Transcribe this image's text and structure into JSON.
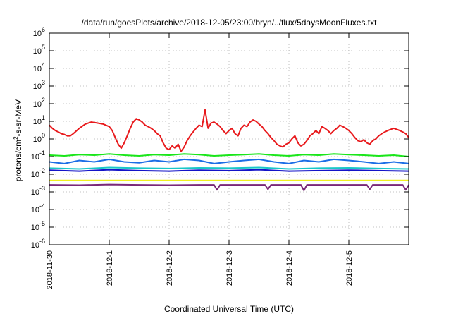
{
  "chart_data": {
    "type": "line",
    "title": "/data/run/goesPlots/archive/2018-12-05/23:00/bryn/../flux/5daysMoonFluxes.txt",
    "xlabel": "Coordinated Universal Time (UTC)",
    "ylabel": "protons/cm2-s-sr-MeV",
    "ylabel_parts": {
      "pre": "protons/cm",
      "sup": "2",
      "post": "-s-sr-MeV"
    },
    "xlim": [
      0,
      6
    ],
    "x_ticks": [
      {
        "value": 0,
        "label": "2018-11-30"
      },
      {
        "value": 1,
        "label": "2018-12-1"
      },
      {
        "value": 2,
        "label": "2018-12-2"
      },
      {
        "value": 3,
        "label": "2018-12-3"
      },
      {
        "value": 4,
        "label": "2018-12-4"
      },
      {
        "value": 5,
        "label": "2018-12-5"
      }
    ],
    "y_scale": "log",
    "ylim": [
      1e-06,
      1000000.0
    ],
    "y_ticks": [
      {
        "value": 1e-06,
        "base": "10",
        "exp": "-6"
      },
      {
        "value": 1e-05,
        "base": "10",
        "exp": "-5"
      },
      {
        "value": 0.0001,
        "base": "10",
        "exp": "-4"
      },
      {
        "value": 0.001,
        "base": "10",
        "exp": "-3"
      },
      {
        "value": 0.01,
        "base": "10",
        "exp": "-2"
      },
      {
        "value": 0.1,
        "base": "10",
        "exp": "-1"
      },
      {
        "value": 1,
        "base": "10",
        "exp": "0"
      },
      {
        "value": 10,
        "base": "10",
        "exp": "1"
      },
      {
        "value": 100,
        "base": "10",
        "exp": "2"
      },
      {
        "value": 1000,
        "base": "10",
        "exp": "3"
      },
      {
        "value": 10000,
        "base": "10",
        "exp": "4"
      },
      {
        "value": 100000,
        "base": "10",
        "exp": "5"
      },
      {
        "value": 1000000,
        "base": "10",
        "exp": "6"
      }
    ],
    "grid": true,
    "series": [
      {
        "color": "#e8191c",
        "x": [
          0,
          0.05,
          0.1,
          0.15,
          0.2,
          0.25,
          0.3,
          0.35,
          0.4,
          0.5,
          0.6,
          0.7,
          0.8,
          0.9,
          1.0,
          1.05,
          1.1,
          1.15,
          1.2,
          1.25,
          1.3,
          1.35,
          1.4,
          1.45,
          1.5,
          1.55,
          1.6,
          1.65,
          1.7,
          1.75,
          1.8,
          1.85,
          1.9,
          1.95,
          2.0,
          2.05,
          2.1,
          2.15,
          2.2,
          2.25,
          2.3,
          2.35,
          2.4,
          2.45,
          2.5,
          2.55,
          2.6,
          2.65,
          2.7,
          2.75,
          2.8,
          2.85,
          2.9,
          2.95,
          3.0,
          3.05,
          3.1,
          3.15,
          3.2,
          3.25,
          3.3,
          3.35,
          3.4,
          3.45,
          3.5,
          3.55,
          3.6,
          3.65,
          3.7,
          3.75,
          3.8,
          3.85,
          3.9,
          3.95,
          4.0,
          4.05,
          4.1,
          4.15,
          4.2,
          4.25,
          4.3,
          4.35,
          4.4,
          4.45,
          4.5,
          4.55,
          4.6,
          4.65,
          4.7,
          4.75,
          4.8,
          4.85,
          4.9,
          4.95,
          5.0,
          5.05,
          5.1,
          5.15,
          5.2,
          5.25,
          5.3,
          5.35,
          5.4,
          5.45,
          5.5,
          5.55,
          5.6,
          5.65,
          5.7,
          5.75,
          5.8,
          5.85,
          5.9,
          5.95,
          6.0
        ],
        "values": [
          6,
          4,
          3,
          2.5,
          2,
          1.8,
          1.5,
          1.5,
          2,
          4,
          7,
          9,
          8,
          7,
          5,
          3,
          1.2,
          0.5,
          0.3,
          0.6,
          1.5,
          4,
          9,
          14,
          12,
          9,
          6,
          5,
          4,
          3,
          2,
          1.5,
          0.6,
          0.3,
          0.25,
          0.4,
          0.3,
          0.5,
          0.2,
          0.35,
          0.8,
          1.5,
          2.5,
          4,
          6,
          5,
          45,
          4,
          8,
          9,
          7,
          5,
          3,
          2,
          3,
          4,
          2,
          1.5,
          4,
          6,
          5,
          9,
          12,
          10,
          7,
          5,
          3,
          2,
          1.2,
          0.8,
          0.5,
          0.4,
          0.35,
          0.5,
          0.6,
          1.0,
          1.5,
          0.6,
          0.4,
          0.5,
          0.8,
          1.5,
          2,
          3,
          2,
          5,
          4,
          3,
          2,
          3,
          4,
          6,
          5,
          4,
          3,
          2,
          1.2,
          0.8,
          0.7,
          0.9,
          0.6,
          0.5,
          0.8,
          1.0,
          1.5,
          2,
          2.5,
          3,
          3.5,
          4,
          3.5,
          3,
          2.5,
          2,
          1.2
        ]
      },
      {
        "color": "#19e619",
        "x": [
          0,
          0.25,
          0.5,
          0.75,
          1,
          1.25,
          1.5,
          1.75,
          2,
          2.25,
          2.5,
          2.75,
          3,
          3.25,
          3.5,
          3.75,
          4,
          4.25,
          4.5,
          4.75,
          5,
          5.25,
          5.5,
          5.75,
          6
        ],
        "values": [
          0.12,
          0.11,
          0.13,
          0.12,
          0.14,
          0.12,
          0.11,
          0.13,
          0.12,
          0.14,
          0.13,
          0.11,
          0.12,
          0.13,
          0.14,
          0.12,
          0.11,
          0.13,
          0.12,
          0.14,
          0.13,
          0.12,
          0.11,
          0.12,
          0.1
        ]
      },
      {
        "color": "#1c6ee6",
        "x": [
          0,
          0.25,
          0.5,
          0.75,
          1,
          1.25,
          1.5,
          1.75,
          2,
          2.25,
          2.5,
          2.75,
          3,
          3.25,
          3.5,
          3.75,
          4,
          4.25,
          4.5,
          4.75,
          5,
          5.25,
          5.5,
          5.75,
          6
        ],
        "values": [
          0.05,
          0.04,
          0.06,
          0.05,
          0.07,
          0.05,
          0.045,
          0.06,
          0.05,
          0.07,
          0.06,
          0.04,
          0.05,
          0.06,
          0.07,
          0.05,
          0.04,
          0.06,
          0.05,
          0.07,
          0.06,
          0.05,
          0.04,
          0.05,
          0.04
        ]
      },
      {
        "color": "#19c8c8",
        "x": [
          0,
          0.5,
          1,
          1.5,
          2,
          2.5,
          3,
          3.5,
          4,
          4.5,
          5,
          5.5,
          6
        ],
        "values": [
          0.022,
          0.02,
          0.024,
          0.022,
          0.021,
          0.023,
          0.022,
          0.024,
          0.02,
          0.022,
          0.023,
          0.021,
          0.02
        ]
      },
      {
        "color": "#1414c8",
        "x": [
          0,
          0.5,
          1,
          1.5,
          2,
          2.5,
          3,
          3.5,
          4,
          4.5,
          5,
          5.5,
          6
        ],
        "values": [
          0.017,
          0.015,
          0.018,
          0.016,
          0.015,
          0.017,
          0.016,
          0.018,
          0.015,
          0.016,
          0.017,
          0.016,
          0.015
        ]
      },
      {
        "color": "#f0f01e",
        "x": [
          0,
          1,
          2,
          3,
          4,
          5,
          6
        ],
        "values": [
          0.0045,
          0.0045,
          0.0045,
          0.0045,
          0.0045,
          0.0045,
          0.0045
        ]
      },
      {
        "color": "#7a2878",
        "x": [
          0,
          0.5,
          1,
          1.5,
          2,
          2.5,
          2.75,
          2.8,
          2.85,
          3,
          3.5,
          3.6,
          3.65,
          3.7,
          4,
          4.2,
          4.25,
          4.3,
          4.5,
          5,
          5.3,
          5.35,
          5.4,
          5.5,
          5.9,
          5.95,
          6
        ],
        "values": [
          0.0025,
          0.0024,
          0.0026,
          0.0025,
          0.0024,
          0.0025,
          0.0025,
          0.0013,
          0.0025,
          0.0025,
          0.0025,
          0.0025,
          0.0014,
          0.0025,
          0.0025,
          0.0025,
          0.0012,
          0.0025,
          0.0025,
          0.0025,
          0.0025,
          0.0014,
          0.0025,
          0.0025,
          0.0025,
          0.0013,
          0.0025
        ]
      }
    ]
  }
}
